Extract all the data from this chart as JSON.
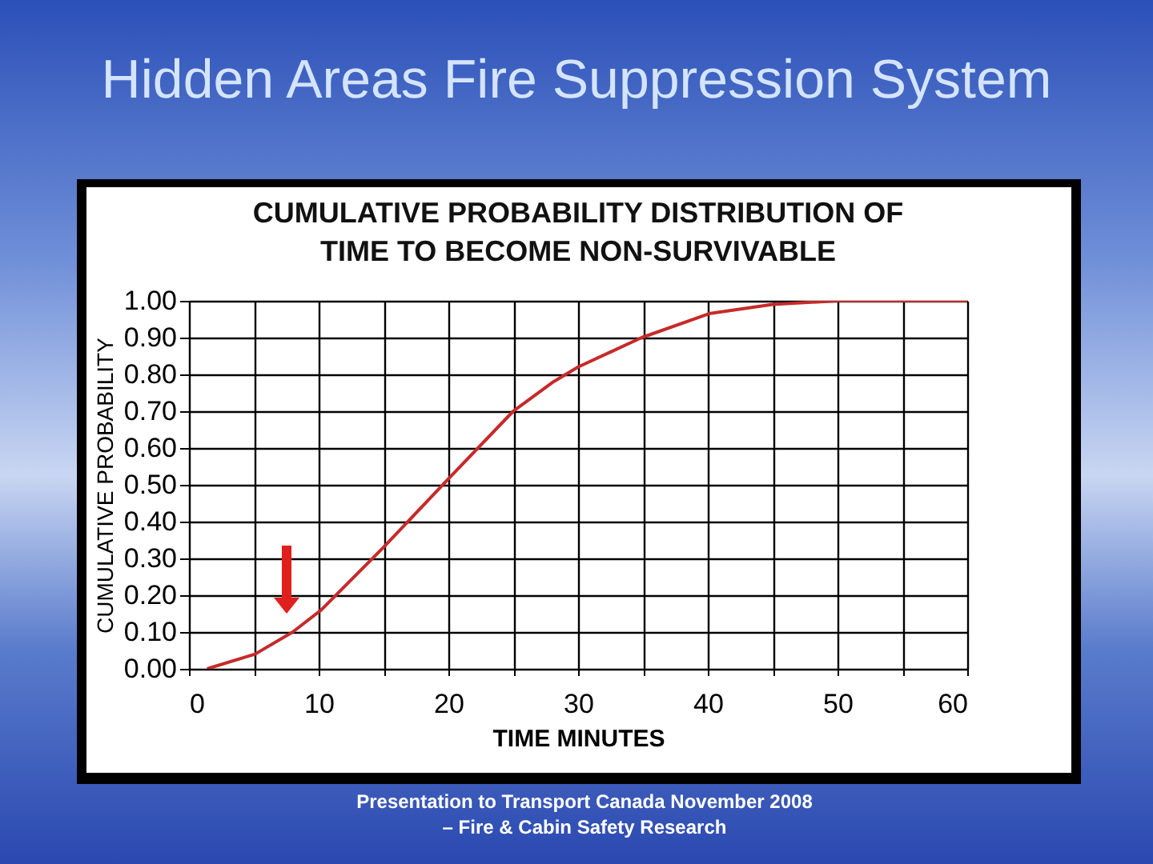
{
  "chart_data": {
    "type": "line",
    "title": "Hidden Areas Fire Suppression System",
    "subtitle": "CUMULATIVE PROBABILITY DISTRIBUTION OF\nTIME TO BECOME NON-SURVIVABLE",
    "xlabel": "TIME MINUTES",
    "ylabel": "CUMULATIVE PROBABILITY",
    "annotations": [
      "Presentation to Transport Canada November 2008\n– Fire & Cabin Safety Research"
    ],
    "series": [
      {
        "color": "#c62a2a",
        "x": [
          1.4,
          5.1,
          8,
          10.2,
          15,
          20.1,
          25,
          28.1,
          30,
          34.9,
          40.1,
          45,
          50,
          60
        ],
        "values": [
          0,
          0.04,
          0.1,
          0.16,
          0.33,
          0.52,
          0.7,
          0.78,
          0.82,
          0.9,
          0.965,
          0.99,
          1.0,
          1.0
        ]
      }
    ],
    "xlim": [
      0,
      60
    ],
    "xticks": [
      0,
      {
        "value": 5,
        "label": null
      },
      10,
      {
        "value": 15,
        "label": null
      },
      20,
      {
        "value": 25,
        "label": null
      },
      30,
      {
        "value": 35,
        "label": null
      },
      40,
      {
        "value": 45,
        "label": null
      },
      50,
      {
        "value": 55,
        "label": null
      },
      60
    ],
    "ylim": [
      0,
      1
    ],
    "yticks": [
      {
        "value": 0,
        "label": "0.00"
      },
      {
        "value": 0.1,
        "label": "0.10"
      },
      {
        "value": 0.2,
        "label": "0.20"
      },
      {
        "value": 0.3,
        "label": "0.30"
      },
      {
        "value": 0.4,
        "label": "0.40"
      },
      {
        "value": 0.5,
        "label": "0.50"
      },
      {
        "value": 0.6,
        "label": "0.60"
      },
      {
        "value": 0.7,
        "label": "0.70"
      },
      {
        "value": 0.8,
        "label": "0.80"
      },
      {
        "value": 0.9,
        "label": "0.90"
      },
      {
        "value": 1,
        "label": "1.00"
      }
    ],
    "grid": true
  }
}
